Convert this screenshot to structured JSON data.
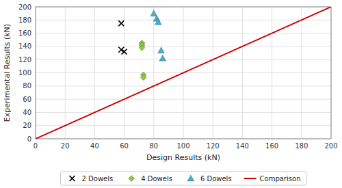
{
  "chart_data": {
    "type": "scatter",
    "xlabel": "Design Results (kN)",
    "ylabel": "Experimental Results (kN)",
    "xlim": [
      0,
      200
    ],
    "ylim": [
      0,
      200
    ],
    "xticks": [
      0,
      20,
      40,
      60,
      80,
      100,
      120,
      140,
      160,
      180,
      200
    ],
    "yticks": [
      0,
      20,
      40,
      60,
      80,
      100,
      120,
      140,
      160,
      180,
      200
    ],
    "grid": true,
    "legend": "bottom",
    "series": [
      {
        "name": "2 Dowels",
        "color": "black",
        "marker": "x",
        "x": [
          58,
          58,
          60
        ],
        "values": [
          175,
          135,
          132
        ]
      },
      {
        "name": "4 Dowels",
        "color": "#8dc63f",
        "marker": "diamond",
        "x": [
          72,
          72,
          72,
          73,
          73
        ],
        "values": [
          145,
          142,
          138,
          97,
          93
        ]
      },
      {
        "name": "6 Dowels",
        "color": "#4bacc6",
        "marker": "triangle",
        "x": [
          80,
          82,
          83,
          85,
          86
        ],
        "values": [
          190,
          182,
          177,
          134,
          122
        ]
      },
      {
        "name": "Comparison",
        "type": "line",
        "color": "#cc0000",
        "x": [
          0,
          200
        ],
        "values": [
          0,
          200
        ]
      }
    ]
  }
}
